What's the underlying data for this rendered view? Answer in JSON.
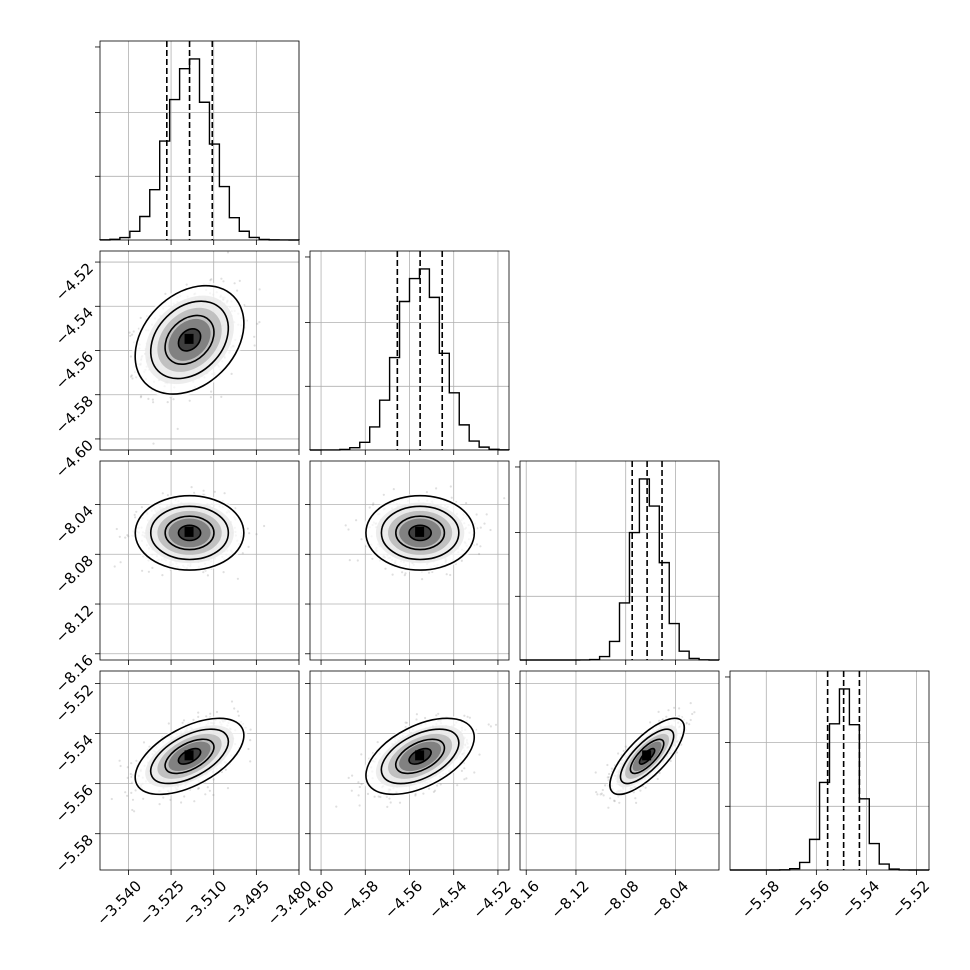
{
  "chart_data": {
    "type": "corner",
    "params": [
      {
        "mean": -3.5185,
        "sd": 0.0078,
        "range": [
          -3.55,
          -3.48
        ],
        "ticks": [
          -3.54,
          -3.525,
          -3.51,
          -3.495,
          -3.48
        ],
        "tick_labels": [
          "−3.540",
          "−3.525",
          "−3.510",
          "−3.495",
          "−3.480"
        ],
        "quantiles": [
          -3.5265,
          -3.5185,
          -3.5105
        ]
      },
      {
        "mean": -4.5552,
        "sd": 0.01,
        "range": [
          -4.605,
          -4.515
        ],
        "ticks": [
          -4.6,
          -4.58,
          -4.56,
          -4.54,
          -4.52
        ],
        "tick_labels": [
          "−4.60",
          "−4.58",
          "−4.56",
          "−4.54",
          "−4.52"
        ],
        "quantiles": [
          -4.5655,
          -4.5552,
          -4.5452
        ]
      },
      {
        "mean": -8.0628,
        "sd": 0.0122,
        "range": [
          -8.165,
          -8.005
        ],
        "ticks": [
          -8.16,
          -8.12,
          -8.08,
          -8.04
        ],
        "tick_labels": [
          "−8.16",
          "−8.12",
          "−8.08",
          "−8.04"
        ],
        "quantiles": [
          -8.0748,
          -8.0628,
          -8.0508
        ]
      },
      {
        "mean": -5.5491,
        "sd": 0.0062,
        "range": [
          -5.5945,
          -5.515
        ],
        "ticks": [
          -5.58,
          -5.56,
          -5.54,
          -5.52
        ],
        "tick_labels": [
          "−5.58",
          "−5.56",
          "−5.54",
          "−5.52"
        ],
        "quantiles": [
          -5.5555,
          -5.5491,
          -5.5428
        ]
      }
    ],
    "correlations": [
      [
        1,
        0.3,
        0,
        0.55
      ],
      [
        0.3,
        1,
        0,
        0.5
      ],
      [
        0,
        0,
        1,
        0.75
      ],
      [
        0.55,
        0.5,
        0.75,
        1
      ]
    ],
    "grid": true,
    "xlabel": "",
    "ylabel": "",
    "title": ""
  }
}
